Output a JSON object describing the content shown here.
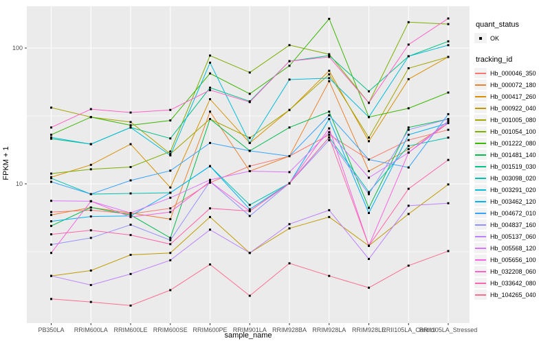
{
  "chart_data": {
    "type": "line",
    "xlabel": "sample_name",
    "ylabel": "FPKM + 1",
    "y_scale": "log10",
    "y_ticks": [
      {
        "value": 10,
        "label": "10"
      },
      {
        "value": 100,
        "label": "100"
      }
    ],
    "y_minor": [
      3.162,
      31.62
    ],
    "ylim": [
      0.94,
      203
    ],
    "grid": true,
    "legend_position": "right",
    "point_marker": "solid-square",
    "categories": [
      "PB350LA",
      "RRIM600LA",
      "RRIM600LE",
      "RRIM600SE",
      "RRIM600PE",
      "RRIM901LA",
      "RRIM928BA",
      "RRIM928LA",
      "RRIM928LE",
      "RRII105LA_Control",
      "RRII105LA_Stressed"
    ],
    "series": [
      {
        "name": "Hb_000046_350",
        "color": "#F8766D",
        "values": [
          6.2,
          6.4,
          6.0,
          6.6,
          10.2,
          13.5,
          16.0,
          23.0,
          15.1,
          21.0,
          25.0
        ]
      },
      {
        "name": "Hb_000072_180",
        "color": "#EA8331",
        "values": [
          5.9,
          6.7,
          6.1,
          5.5,
          34.0,
          12.4,
          16.0,
          57.0,
          12.4,
          18.0,
          28.0
        ]
      },
      {
        "name": "Hb_000417_260",
        "color": "#D89000",
        "values": [
          11.2,
          13.8,
          19.6,
          9.4,
          42.0,
          20.0,
          35.0,
          68.0,
          20.6,
          59.0,
          86.0
        ]
      },
      {
        "name": "Hb_000922_040",
        "color": "#C09B00",
        "values": [
          2.1,
          2.3,
          3.0,
          3.1,
          5.7,
          3.1,
          4.7,
          5.7,
          3.5,
          6.0,
          9.9
        ]
      },
      {
        "name": "Hb_001005_080",
        "color": "#A3A500",
        "values": [
          36.4,
          31.0,
          28.5,
          16.6,
          30.0,
          21.8,
          35.0,
          64.0,
          21.9,
          71.0,
          86.0
        ]
      },
      {
        "name": "Hb_001054_100",
        "color": "#7CAE00",
        "values": [
          11.9,
          12.8,
          13.3,
          17.3,
          88.0,
          66.0,
          105.0,
          90.0,
          39.5,
          155.0,
          150.0
        ]
      },
      {
        "name": "Hb_001222_080",
        "color": "#39B600",
        "values": [
          23.0,
          31.0,
          27.0,
          29.3,
          65.0,
          46.0,
          74.0,
          164.0,
          31.0,
          36.0,
          47.0
        ]
      },
      {
        "name": "Hb_001481_140",
        "color": "#00BB4E",
        "values": [
          4.9,
          6.7,
          5.9,
          4.0,
          30.0,
          17.5,
          26.0,
          34.0,
          6.65,
          26.0,
          30.0
        ]
      },
      {
        "name": "Hb_001519_030",
        "color": "#00C087",
        "values": [
          21.5,
          19.6,
          26.0,
          21.6,
          51.0,
          40.5,
          80.0,
          88.0,
          48.0,
          87.0,
          112.0
        ]
      },
      {
        "name": "Hb_003098_020",
        "color": "#00C0B2",
        "values": [
          11.0,
          8.4,
          8.5,
          8.6,
          13.5,
          7.0,
          10.1,
          22.0,
          8.7,
          19.0,
          21.9
        ]
      },
      {
        "name": "Hb_003291_020",
        "color": "#00BCD8",
        "values": [
          22.0,
          19.6,
          26.0,
          16.2,
          78.0,
          20.0,
          58.6,
          60.0,
          31.0,
          87.0,
          105.0
        ]
      },
      {
        "name": "Hb_003462_120",
        "color": "#00B0F6",
        "values": [
          5.3,
          5.75,
          5.8,
          8.6,
          13.5,
          6.5,
          10.1,
          30.0,
          6.1,
          23.0,
          28.0
        ]
      },
      {
        "name": "Hb_004672_010",
        "color": "#35A2FF",
        "values": [
          10.35,
          8.4,
          10.6,
          12.5,
          20.0,
          17.5,
          16.0,
          32.0,
          15.1,
          13.2,
          32.6
        ]
      },
      {
        "name": "Hb_004837_160",
        "color": "#9590FF",
        "values": [
          3.57,
          4.0,
          5.0,
          3.85,
          10.4,
          5.8,
          10.1,
          21.0,
          8.4,
          25.0,
          30.0
        ]
      },
      {
        "name": "Hb_005137_060",
        "color": "#BC81FF",
        "values": [
          2.1,
          1.8,
          2.17,
          2.74,
          4.6,
          3.1,
          5.05,
          6.4,
          2.8,
          6.9,
          7.2
        ]
      },
      {
        "name": "Hb_005568_120",
        "color": "#DB72FB",
        "values": [
          7.5,
          7.45,
          6.1,
          7.9,
          10.7,
          12.4,
          12.2,
          24.0,
          11.1,
          17.0,
          29.0
        ]
      },
      {
        "name": "Hb_005656_100",
        "color": "#F763E0",
        "values": [
          3.1,
          7.45,
          5.7,
          6.2,
          10.4,
          6.3,
          10.1,
          25.6,
          3.5,
          17.0,
          28.0
        ]
      },
      {
        "name": "Hb_032208_060",
        "color": "#FF61C9",
        "values": [
          26.0,
          35.5,
          33.5,
          35.0,
          49.0,
          40.0,
          80.0,
          86.0,
          39.5,
          106.0,
          165.0
        ]
      },
      {
        "name": "Hb_033642_080",
        "color": "#FF65AC",
        "values": [
          4.25,
          4.55,
          4.2,
          3.6,
          6.6,
          6.3,
          10.1,
          22.0,
          3.5,
          9.2,
          15.0
        ]
      },
      {
        "name": "Hb_104265_040",
        "color": "#FF6C90",
        "values": [
          1.42,
          1.35,
          1.27,
          1.65,
          2.55,
          1.5,
          2.6,
          2.1,
          1.72,
          2.5,
          3.2
        ]
      }
    ],
    "legend": {
      "quant_status_title": "quant_status",
      "quant_status_items": [
        {
          "label": "OK",
          "marker": "point"
        }
      ],
      "tracking_title": "tracking_id"
    },
    "colors": {
      "panel_bg": "#EBEBEB",
      "grid": "#FFFFFF",
      "axis_text": "#4D4D4D",
      "tick": "#333333",
      "point": "#000000",
      "legend_key_bg": "#F2F2F2",
      "title_text": "#000000"
    }
  }
}
